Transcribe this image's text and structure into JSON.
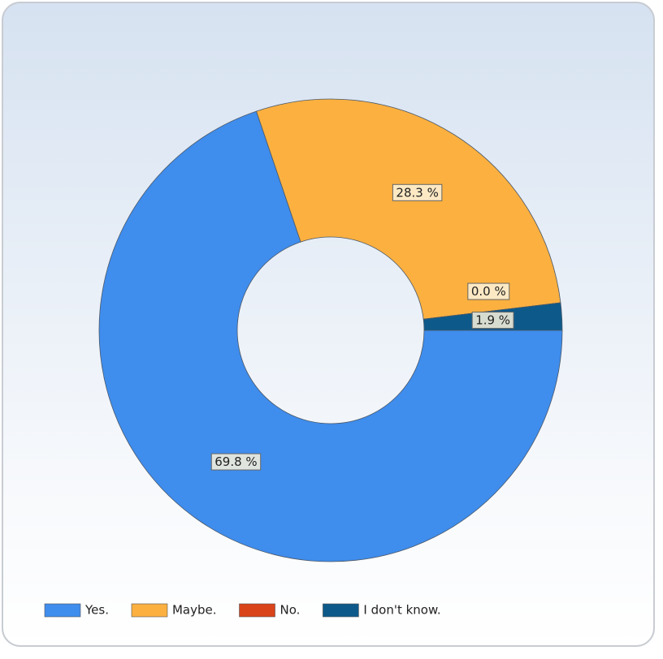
{
  "chart_data": {
    "type": "donut",
    "categories": [
      "Yes.",
      "Maybe.",
      "No.",
      "I don't know."
    ],
    "values": [
      69.8,
      28.3,
      0.0,
      1.9
    ],
    "value_labels": [
      "69.8 %",
      "28.3 %",
      "0.0 %",
      "1.9 %"
    ],
    "colors": [
      "#3f8ded",
      "#fbb040",
      "#d9441a",
      "#0d5a8a"
    ],
    "legend": "bottom"
  }
}
